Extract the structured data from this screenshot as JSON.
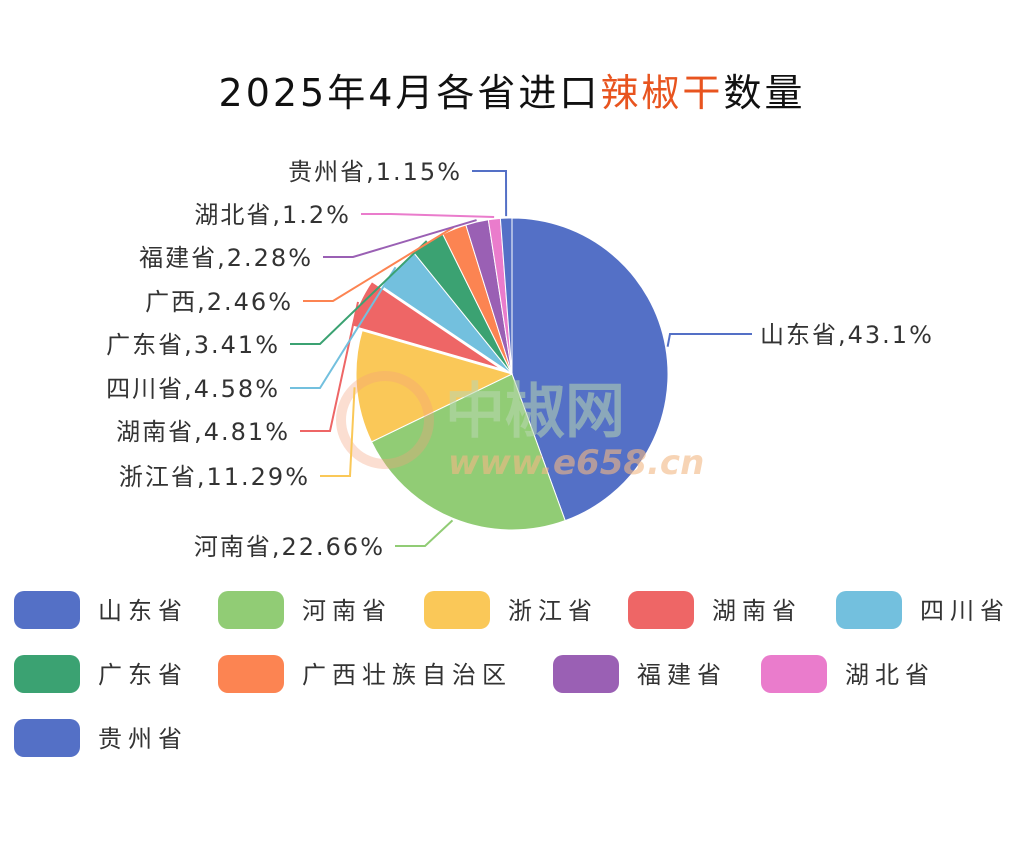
{
  "title": {
    "part1": "2025年4月各省进口",
    "highlight": "辣椒干",
    "part2": "数量",
    "highlight_color": "#e8541f"
  },
  "watermark": {
    "name": "中椒网",
    "url": "www.e658.cn"
  },
  "chart_data": {
    "type": "pie",
    "title": "2025年4月各省进口辣椒干数量",
    "start_angle_deg": 0,
    "direction": "clockwise",
    "legend_position": "bottom",
    "slices": [
      {
        "name": "山东省",
        "label": "山东省,43.1%",
        "value": 43.1,
        "color": "#5470c6",
        "offset": 0
      },
      {
        "name": "河南省",
        "label": "河南省,22.66%",
        "value": 22.66,
        "color": "#91cc75",
        "offset": 0
      },
      {
        "name": "浙江省",
        "label": "浙江省,11.29%",
        "value": 11.29,
        "color": "#fac858",
        "offset": 0
      },
      {
        "name": "湖南省",
        "label": "湖南省,4.81%",
        "value": 4.81,
        "color": "#ee6666",
        "offset": 1
      },
      {
        "name": "四川省",
        "label": "四川省,4.58%",
        "value": 4.58,
        "color": "#73c0de",
        "offset": 0
      },
      {
        "name": "广东省",
        "label": "广东省,3.41%",
        "value": 3.41,
        "color": "#3ba272",
        "offset": 0
      },
      {
        "name": "广西壮族自治区",
        "label": "广西,2.46%",
        "value": 2.46,
        "color": "#fc8452",
        "offset": 0
      },
      {
        "name": "福建省",
        "label": "福建省,2.28%",
        "value": 2.28,
        "color": "#9a60b4",
        "offset": 0
      },
      {
        "name": "湖北省",
        "label": "湖北省,1.2%",
        "value": 1.2,
        "color": "#ea7ccc",
        "offset": 0
      },
      {
        "name": "贵州省",
        "label": "贵州省,1.15%",
        "value": 1.15,
        "color": "#5470c6",
        "offset": 0
      }
    ]
  }
}
